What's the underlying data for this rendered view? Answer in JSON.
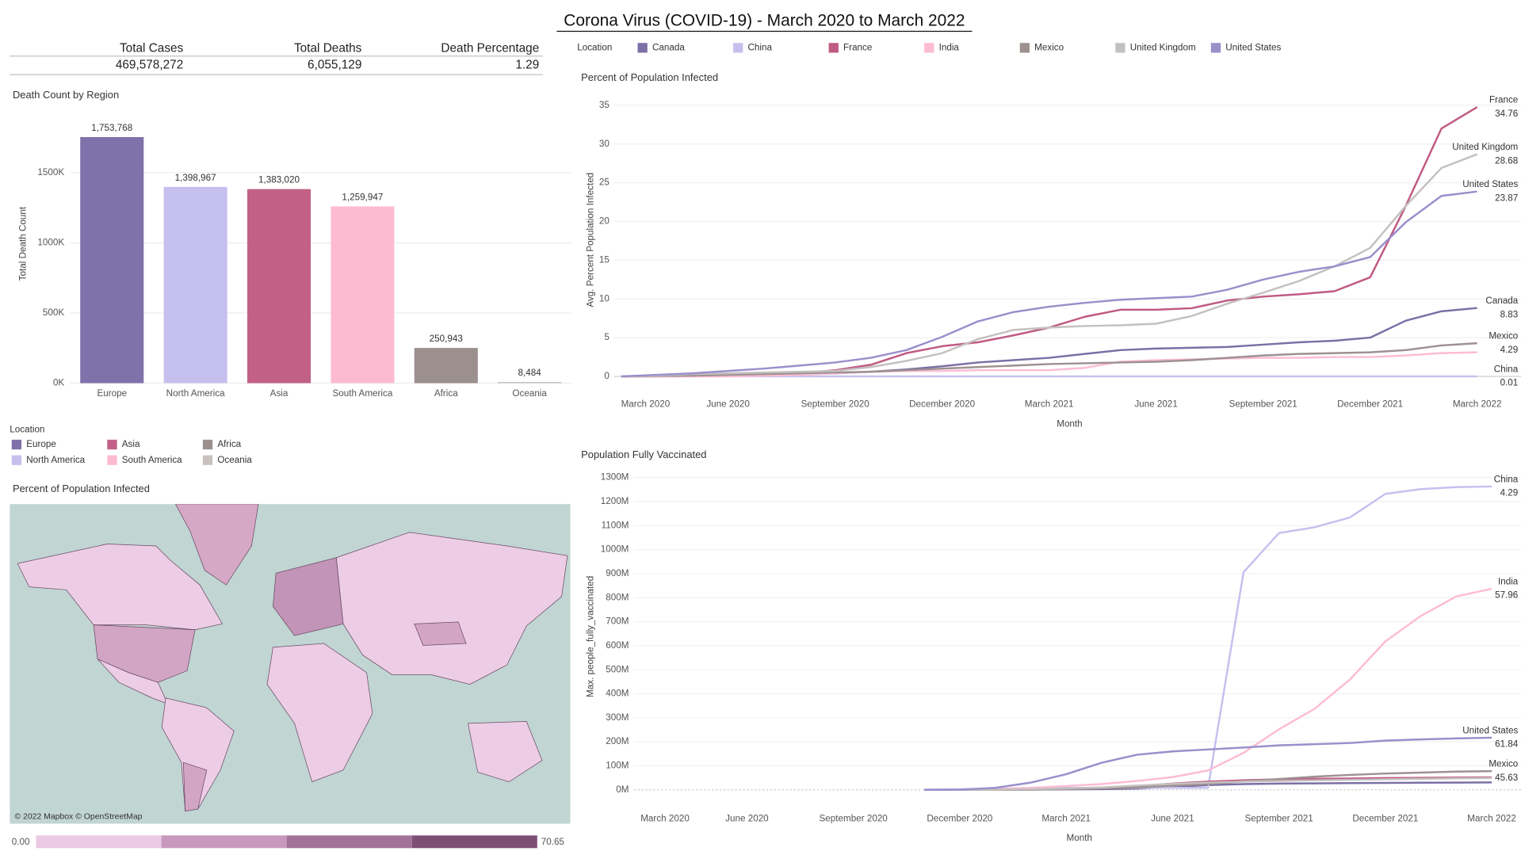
{
  "title": "Corona Virus (COVID-19) - March 2020 to March 2022",
  "kpis": [
    {
      "label": "Total Cases",
      "value": "469,578,272"
    },
    {
      "label": "Total Deaths",
      "value": "6,055,129"
    },
    {
      "label": "Death Percentage",
      "value": "1.29"
    }
  ],
  "chart_data": [
    {
      "type": "bar",
      "title": "Death Count by Region",
      "y_label": "Total Death Count",
      "categories": [
        "Europe",
        "North America",
        "Asia",
        "South America",
        "Africa",
        "Oceania"
      ],
      "values": [
        1753768,
        1398967,
        1383020,
        1259947,
        250943,
        8484
      ],
      "value_labels": [
        "1,753,768",
        "1,398,967",
        "1,383,020",
        "1,259,947",
        "250,943",
        "8,484"
      ],
      "colors": [
        "#7f71a9",
        "#c6c0ef",
        "#c26086",
        "#fdbbd2",
        "#9c908f",
        "#c9c1c0"
      ],
      "ylim": [
        0,
        1980000
      ],
      "yticks": [
        {
          "value": 0,
          "label": "0K"
        },
        {
          "value": 500000,
          "label": "500K"
        },
        {
          "value": 1000000,
          "label": "1000K"
        },
        {
          "value": 1500000,
          "label": "1500K"
        }
      ],
      "grid": true,
      "legend_title": "Location"
    },
    {
      "type": "line",
      "title": "Percent of Population Infected",
      "x_label": "Month",
      "y_label": "Avg. Percent Population Infected",
      "legend_title": "Location",
      "x": [
        "2020-03",
        "2020-04",
        "2020-05",
        "2020-06",
        "2020-07",
        "2020-08",
        "2020-09",
        "2020-10",
        "2020-11",
        "2020-12",
        "2021-01",
        "2021-02",
        "2021-03",
        "2021-04",
        "2021-05",
        "2021-06",
        "2021-07",
        "2021-08",
        "2021-09",
        "2021-10",
        "2021-11",
        "2021-12",
        "2022-01",
        "2022-02",
        "2022-03"
      ],
      "xticks": [
        {
          "value": "2020-03",
          "label": "March 2020"
        },
        {
          "value": "2020-06",
          "label": "June 2020"
        },
        {
          "value": "2020-09",
          "label": "September 2020"
        },
        {
          "value": "2020-12",
          "label": "December 2020"
        },
        {
          "value": "2021-03",
          "label": "March 2021"
        },
        {
          "value": "2021-06",
          "label": "June 2021"
        },
        {
          "value": "2021-09",
          "label": "September 2021"
        },
        {
          "value": "2021-12",
          "label": "December 2021"
        },
        {
          "value": "2022-03",
          "label": "March 2022"
        }
      ],
      "ylim": [
        -1.5,
        36.5
      ],
      "yticks": [
        0,
        5,
        10,
        15,
        20,
        25,
        30,
        35
      ],
      "grid": true,
      "series": [
        {
          "name": "Canada",
          "color": "#7b6fa6",
          "values": [
            0,
            0.1,
            0.2,
            0.3,
            0.3,
            0.3,
            0.4,
            0.6,
            0.9,
            1.3,
            1.8,
            2.1,
            2.4,
            2.9,
            3.4,
            3.6,
            3.7,
            3.8,
            4.1,
            4.4,
            4.6,
            5,
            7.2,
            8.4,
            8.83
          ]
        },
        {
          "name": "China",
          "color": "#c6c0ee",
          "values": [
            0.01,
            0.01,
            0.01,
            0.01,
            0.01,
            0.01,
            0.01,
            0.01,
            0.01,
            0.01,
            0.01,
            0.01,
            0.01,
            0.01,
            0.01,
            0.01,
            0.01,
            0.01,
            0.01,
            0.01,
            0.01,
            0.01,
            0.01,
            0.01,
            0.01
          ]
        },
        {
          "name": "France",
          "color": "#c05a83",
          "values": [
            0,
            0,
            0.3,
            0.3,
            0.3,
            0.4,
            0.8,
            1.5,
            3,
            3.9,
            4.4,
            5.3,
            6.3,
            7.7,
            8.6,
            8.6,
            8.8,
            9.8,
            10.3,
            10.6,
            11,
            12.8,
            22,
            32,
            34.76
          ]
        },
        {
          "name": "India",
          "color": "#fdbcd4",
          "labeled": false,
          "values": [
            0,
            0,
            0,
            0,
            0.1,
            0.2,
            0.4,
            0.6,
            0.7,
            0.7,
            0.8,
            0.8,
            0.8,
            1.1,
            1.9,
            2.1,
            2.2,
            2.3,
            2.4,
            2.4,
            2.5,
            2.5,
            2.7,
            3,
            3.1
          ]
        },
        {
          "name": "Mexico",
          "color": "#9d9190",
          "values": [
            0,
            0.05,
            0.1,
            0.2,
            0.3,
            0.4,
            0.5,
            0.6,
            0.8,
            1,
            1.2,
            1.4,
            1.6,
            1.7,
            1.8,
            1.9,
            2.1,
            2.4,
            2.7,
            2.9,
            3,
            3.1,
            3.4,
            4,
            4.29
          ]
        },
        {
          "name": "United Kingdom",
          "color": "#c5c0c0",
          "values": [
            0,
            0.1,
            0.3,
            0.4,
            0.5,
            0.6,
            0.7,
            1.2,
            2,
            3,
            4.8,
            6,
            6.3,
            6.5,
            6.6,
            6.8,
            7.8,
            9.4,
            10.8,
            12.3,
            14.2,
            16.6,
            22,
            26.9,
            28.68
          ]
        },
        {
          "name": "United States",
          "color": "#9a8fcb",
          "values": [
            0,
            0.2,
            0.4,
            0.7,
            1,
            1.4,
            1.8,
            2.4,
            3.4,
            5.1,
            7.1,
            8.3,
            9,
            9.5,
            9.9,
            10.1,
            10.3,
            11.2,
            12.5,
            13.5,
            14.2,
            15.4,
            19.9,
            23.3,
            23.87
          ]
        }
      ]
    },
    {
      "type": "line",
      "title": "Population Fully Vaccinated",
      "x_label": "Month",
      "y_label": "Max. people_fully_vaccinated",
      "x": [
        "2020-03",
        "2020-04",
        "2020-05",
        "2020-06",
        "2020-07",
        "2020-08",
        "2020-09",
        "2020-10",
        "2020-11",
        "2020-12",
        "2021-01",
        "2021-02",
        "2021-03",
        "2021-04",
        "2021-05",
        "2021-06",
        "2021-07",
        "2021-08",
        "2021-09",
        "2021-10",
        "2021-11",
        "2021-12",
        "2022-01",
        "2022-02",
        "2022-03"
      ],
      "xticks": [
        {
          "value": "2020-03",
          "label": "March 2020"
        },
        {
          "value": "2020-06",
          "label": "June 2020"
        },
        {
          "value": "2020-09",
          "label": "September 2020"
        },
        {
          "value": "2020-12",
          "label": "December 2020"
        },
        {
          "value": "2021-03",
          "label": "March 2021"
        },
        {
          "value": "2021-06",
          "label": "June 2021"
        },
        {
          "value": "2021-09",
          "label": "September 2021"
        },
        {
          "value": "2021-12",
          "label": "December 2021"
        },
        {
          "value": "2022-03",
          "label": "March 2022"
        }
      ],
      "ylim": [
        -60000000,
        1340000000
      ],
      "yticks": [
        {
          "value": 0,
          "label": "0M"
        },
        {
          "value": 100000000,
          "label": "100M"
        },
        {
          "value": 200000000,
          "label": "200M"
        },
        {
          "value": 300000000,
          "label": "300M"
        },
        {
          "value": 400000000,
          "label": "400M"
        },
        {
          "value": 500000000,
          "label": "500M"
        },
        {
          "value": 600000000,
          "label": "600M"
        },
        {
          "value": 700000000,
          "label": "700M"
        },
        {
          "value": 800000000,
          "label": "800M"
        },
        {
          "value": 900000000,
          "label": "900M"
        },
        {
          "value": 1000000000,
          "label": "1000M"
        },
        {
          "value": 1100000000,
          "label": "1100M"
        },
        {
          "value": 1200000000,
          "label": "1200M"
        },
        {
          "value": 1300000000,
          "label": "1300M"
        }
      ],
      "grid": true,
      "series": [
        {
          "color": "#7b6fa6",
          "values": [
            null,
            null,
            null,
            null,
            null,
            null,
            null,
            null,
            0,
            0,
            500000,
            1000000,
            2000000,
            3000000,
            5000000,
            12000000,
            20000000,
            24000000,
            26000000,
            27000000,
            28000000,
            29000000,
            29500000,
            30000000,
            31000000
          ]
        },
        {
          "name": "China",
          "color": "#c6c0ee",
          "end_label": 4.29,
          "values": [
            null,
            null,
            null,
            null,
            null,
            null,
            null,
            null,
            1000000,
            2000000,
            4000000,
            6000000,
            8000000,
            8000000,
            8000000,
            8000000,
            8000000,
            906000000,
            1069000000,
            1093000000,
            1134000000,
            1232000000,
            1252000000,
            1260000000,
            1263000000
          ]
        },
        {
          "color": "#c05a83",
          "values": [
            null,
            null,
            null,
            null,
            null,
            null,
            null,
            null,
            0,
            0,
            500000,
            2000000,
            4000000,
            8000000,
            15000000,
            26000000,
            34000000,
            40000000,
            44000000,
            46000000,
            47000000,
            49000000,
            50000000,
            51000000,
            52000000
          ]
        },
        {
          "name": "India",
          "color": "#fdbcd4",
          "end_label": 57.96,
          "values": [
            null,
            null,
            null,
            null,
            null,
            null,
            null,
            null,
            0,
            0,
            4000000,
            8000000,
            16000000,
            24000000,
            37000000,
            53000000,
            81000000,
            154000000,
            252000000,
            337000000,
            459000000,
            618000000,
            724000000,
            805000000,
            837000000
          ]
        },
        {
          "name": "Mexico",
          "color": "#9d9190",
          "end_label": 45.63,
          "values": [
            null,
            null,
            null,
            null,
            null,
            null,
            null,
            null,
            0,
            0,
            0,
            1000000,
            3000000,
            6000000,
            10000000,
            17000000,
            25000000,
            35000000,
            45000000,
            55000000,
            62000000,
            68000000,
            72000000,
            76000000,
            78000000
          ]
        },
        {
          "color": "#c5c0c0",
          "values": [
            null,
            null,
            null,
            null,
            null,
            null,
            null,
            null,
            0,
            500000,
            1000000,
            3000000,
            6000000,
            10000000,
            18000000,
            25000000,
            30000000,
            34000000,
            37000000,
            40000000,
            42000000,
            44000000,
            46000000,
            48000000,
            49000000
          ]
        },
        {
          "name": "United States",
          "color": "#9a8fcb",
          "end_label": 61.84,
          "values": [
            null,
            null,
            null,
            null,
            null,
            null,
            null,
            null,
            0,
            1000000,
            8000000,
            30000000,
            65000000,
            113000000,
            146000000,
            160000000,
            168000000,
            176000000,
            185000000,
            190000000,
            195000000,
            205000000,
            210000000,
            214000000,
            217000000
          ]
        }
      ]
    },
    {
      "type": "map",
      "title": "Percent of Population Infected",
      "attribution": "© 2022 Mapbox © OpenStreetMap",
      "scale": [
        {
          "value": 0,
          "label": "0.00"
        },
        {
          "value": 70.65,
          "label": "70.65"
        }
      ],
      "colors": [
        "#ecc9e4",
        "#c999bd",
        "#a37299",
        "#7d4f77"
      ]
    }
  ]
}
